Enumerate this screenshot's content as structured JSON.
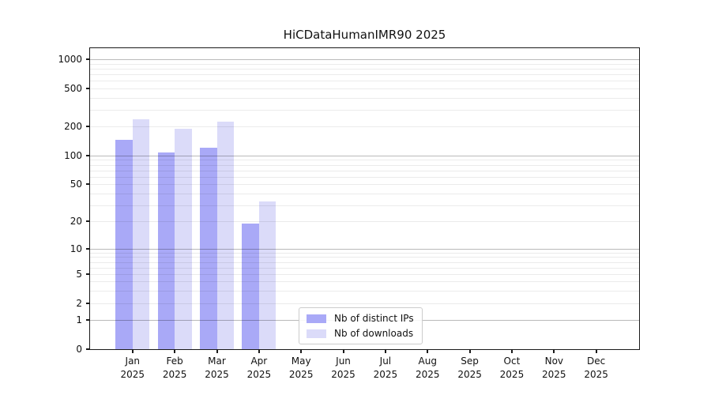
{
  "chart_data": {
    "type": "bar",
    "title": "HiCDataHumanIMR90 2025",
    "categories": [
      "Jan",
      "Feb",
      "Mar",
      "Apr",
      "May",
      "Jun",
      "Jul",
      "Aug",
      "Sep",
      "Oct",
      "Nov",
      "Dec"
    ],
    "year": "2025",
    "x_tick_labels": [
      "Jan 2025",
      "Feb 2025",
      "Mar 2025",
      "Apr 2025",
      "May 2025",
      "Jun 2025",
      "Jul 2025",
      "Aug 2025",
      "Sep 2025",
      "Oct 2025",
      "Nov 2025",
      "Dec 2025"
    ],
    "series": [
      {
        "name": "Nb of distinct IPs",
        "color": "#a9a9f7",
        "values": [
          145,
          107,
          120,
          19,
          0,
          0,
          0,
          0,
          0,
          0,
          0,
          0
        ]
      },
      {
        "name": "Nb of downloads",
        "color": "#dbdbf9",
        "values": [
          240,
          190,
          225,
          33,
          0,
          0,
          0,
          0,
          0,
          0,
          0,
          0
        ]
      }
    ],
    "y_scale": "log10(1+y)",
    "y_ticks": [
      0,
      1,
      2,
      5,
      10,
      20,
      50,
      100,
      200,
      500,
      1000
    ],
    "y_major_gridlines": [
      1,
      10,
      100,
      1000
    ],
    "y_max": 1300,
    "grid": "horizontal, darker lines at powers of 10, faint lines at 2-9 multiples",
    "legend": {
      "position": "inside, lower area left of center",
      "entries": [
        "Nb of distinct IPs",
        "Nb of downloads"
      ]
    }
  }
}
